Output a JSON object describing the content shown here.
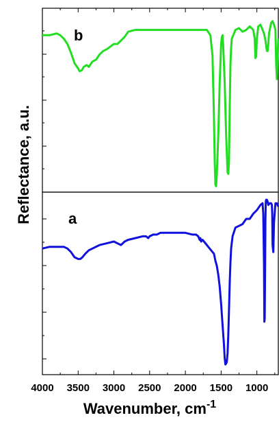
{
  "chart_data": {
    "type": "line",
    "xlabel": "Wavenumber, cm",
    "xlabel_superscript": "-1",
    "ylabel": "Reflectance, a.u.",
    "x_reversed": true,
    "xlim": [
      4000,
      700
    ],
    "x_ticks": [
      4000,
      3500,
      3000,
      2500,
      2000,
      1500,
      1000
    ],
    "x_tick_labels": [
      "4000",
      "3500",
      "3000",
      "2500",
      "2000",
      "1500",
      "1000"
    ],
    "y_tick_labels_shown": false,
    "panels": [
      {
        "label": "b",
        "position": "top",
        "color": "#22dd22",
        "ylim": [
          0,
          1
        ],
        "x": [
          4000,
          3900,
          3800,
          3750,
          3700,
          3650,
          3600,
          3550,
          3500,
          3480,
          3450,
          3420,
          3380,
          3350,
          3300,
          3250,
          3200,
          3150,
          3100,
          3000,
          2950,
          2900,
          2850,
          2800,
          2700,
          2600,
          2500,
          2300,
          2000,
          1800,
          1700,
          1650,
          1620,
          1600,
          1590,
          1580,
          1570,
          1560,
          1540,
          1520,
          1500,
          1490,
          1480,
          1470,
          1450,
          1430,
          1410,
          1400,
          1390,
          1380,
          1370,
          1360,
          1350,
          1300,
          1250,
          1200,
          1150,
          1100,
          1050,
          1030,
          1020,
          1010,
          1000,
          980,
          950,
          900,
          880,
          860,
          850,
          840,
          830,
          800,
          780,
          760,
          740,
          730,
          720,
          710,
          700
        ],
        "y": [
          0.87,
          0.87,
          0.88,
          0.87,
          0.85,
          0.82,
          0.77,
          0.71,
          0.68,
          0.665,
          0.67,
          0.69,
          0.7,
          0.69,
          0.72,
          0.73,
          0.76,
          0.78,
          0.79,
          0.82,
          0.82,
          0.84,
          0.86,
          0.89,
          0.9,
          0.9,
          0.9,
          0.9,
          0.9,
          0.9,
          0.9,
          0.87,
          0.75,
          0.4,
          0.15,
          0.02,
          0.01,
          0.08,
          0.3,
          0.6,
          0.82,
          0.86,
          0.87,
          0.8,
          0.6,
          0.3,
          0.09,
          0.08,
          0.15,
          0.45,
          0.7,
          0.8,
          0.85,
          0.9,
          0.91,
          0.89,
          0.9,
          0.92,
          0.9,
          0.85,
          0.74,
          0.75,
          0.85,
          0.92,
          0.93,
          0.88,
          0.84,
          0.78,
          0.78,
          0.82,
          0.88,
          0.94,
          0.95,
          0.93,
          0.9,
          0.7,
          0.62,
          0.75,
          0.85
        ]
      },
      {
        "label": "a",
        "position": "bottom",
        "color": "#1111dd",
        "ylim": [
          0,
          1
        ],
        "x": [
          4000,
          3900,
          3800,
          3750,
          3700,
          3650,
          3600,
          3550,
          3500,
          3470,
          3440,
          3400,
          3350,
          3300,
          3200,
          3100,
          3000,
          2950,
          2900,
          2850,
          2800,
          2700,
          2600,
          2550,
          2520,
          2500,
          2450,
          2400,
          2350,
          2300,
          2200,
          2100,
          2000,
          1900,
          1850,
          1820,
          1800,
          1790,
          1780,
          1760,
          1740,
          1720,
          1700,
          1680,
          1660,
          1640,
          1620,
          1600,
          1580,
          1560,
          1540,
          1520,
          1500,
          1480,
          1460,
          1450,
          1440,
          1430,
          1420,
          1410,
          1400,
          1390,
          1380,
          1370,
          1360,
          1340,
          1300,
          1250,
          1200,
          1150,
          1100,
          1050,
          1000,
          950,
          920,
          910,
          900,
          895,
          890,
          885,
          880,
          875,
          870,
          860,
          850,
          840,
          820,
          800,
          790,
          785,
          780,
          770,
          760,
          740,
          720,
          700
        ],
        "y": [
          0.7,
          0.71,
          0.71,
          0.71,
          0.71,
          0.7,
          0.68,
          0.65,
          0.64,
          0.64,
          0.65,
          0.67,
          0.69,
          0.7,
          0.72,
          0.73,
          0.74,
          0.73,
          0.72,
          0.74,
          0.75,
          0.76,
          0.77,
          0.77,
          0.76,
          0.77,
          0.78,
          0.78,
          0.79,
          0.79,
          0.79,
          0.79,
          0.79,
          0.78,
          0.78,
          0.77,
          0.75,
          0.76,
          0.74,
          0.75,
          0.74,
          0.73,
          0.72,
          0.71,
          0.7,
          0.69,
          0.68,
          0.67,
          0.63,
          0.6,
          0.55,
          0.48,
          0.38,
          0.26,
          0.15,
          0.07,
          0.035,
          0.04,
          0.05,
          0.1,
          0.2,
          0.35,
          0.5,
          0.62,
          0.7,
          0.77,
          0.82,
          0.83,
          0.84,
          0.87,
          0.87,
          0.9,
          0.92,
          0.95,
          0.96,
          0.9,
          0.6,
          0.28,
          0.3,
          0.6,
          0.88,
          0.97,
          0.98,
          0.98,
          0.97,
          0.95,
          0.96,
          0.96,
          0.95,
          0.9,
          0.72,
          0.68,
          0.85,
          0.96,
          0.96,
          0.94
        ]
      }
    ]
  }
}
